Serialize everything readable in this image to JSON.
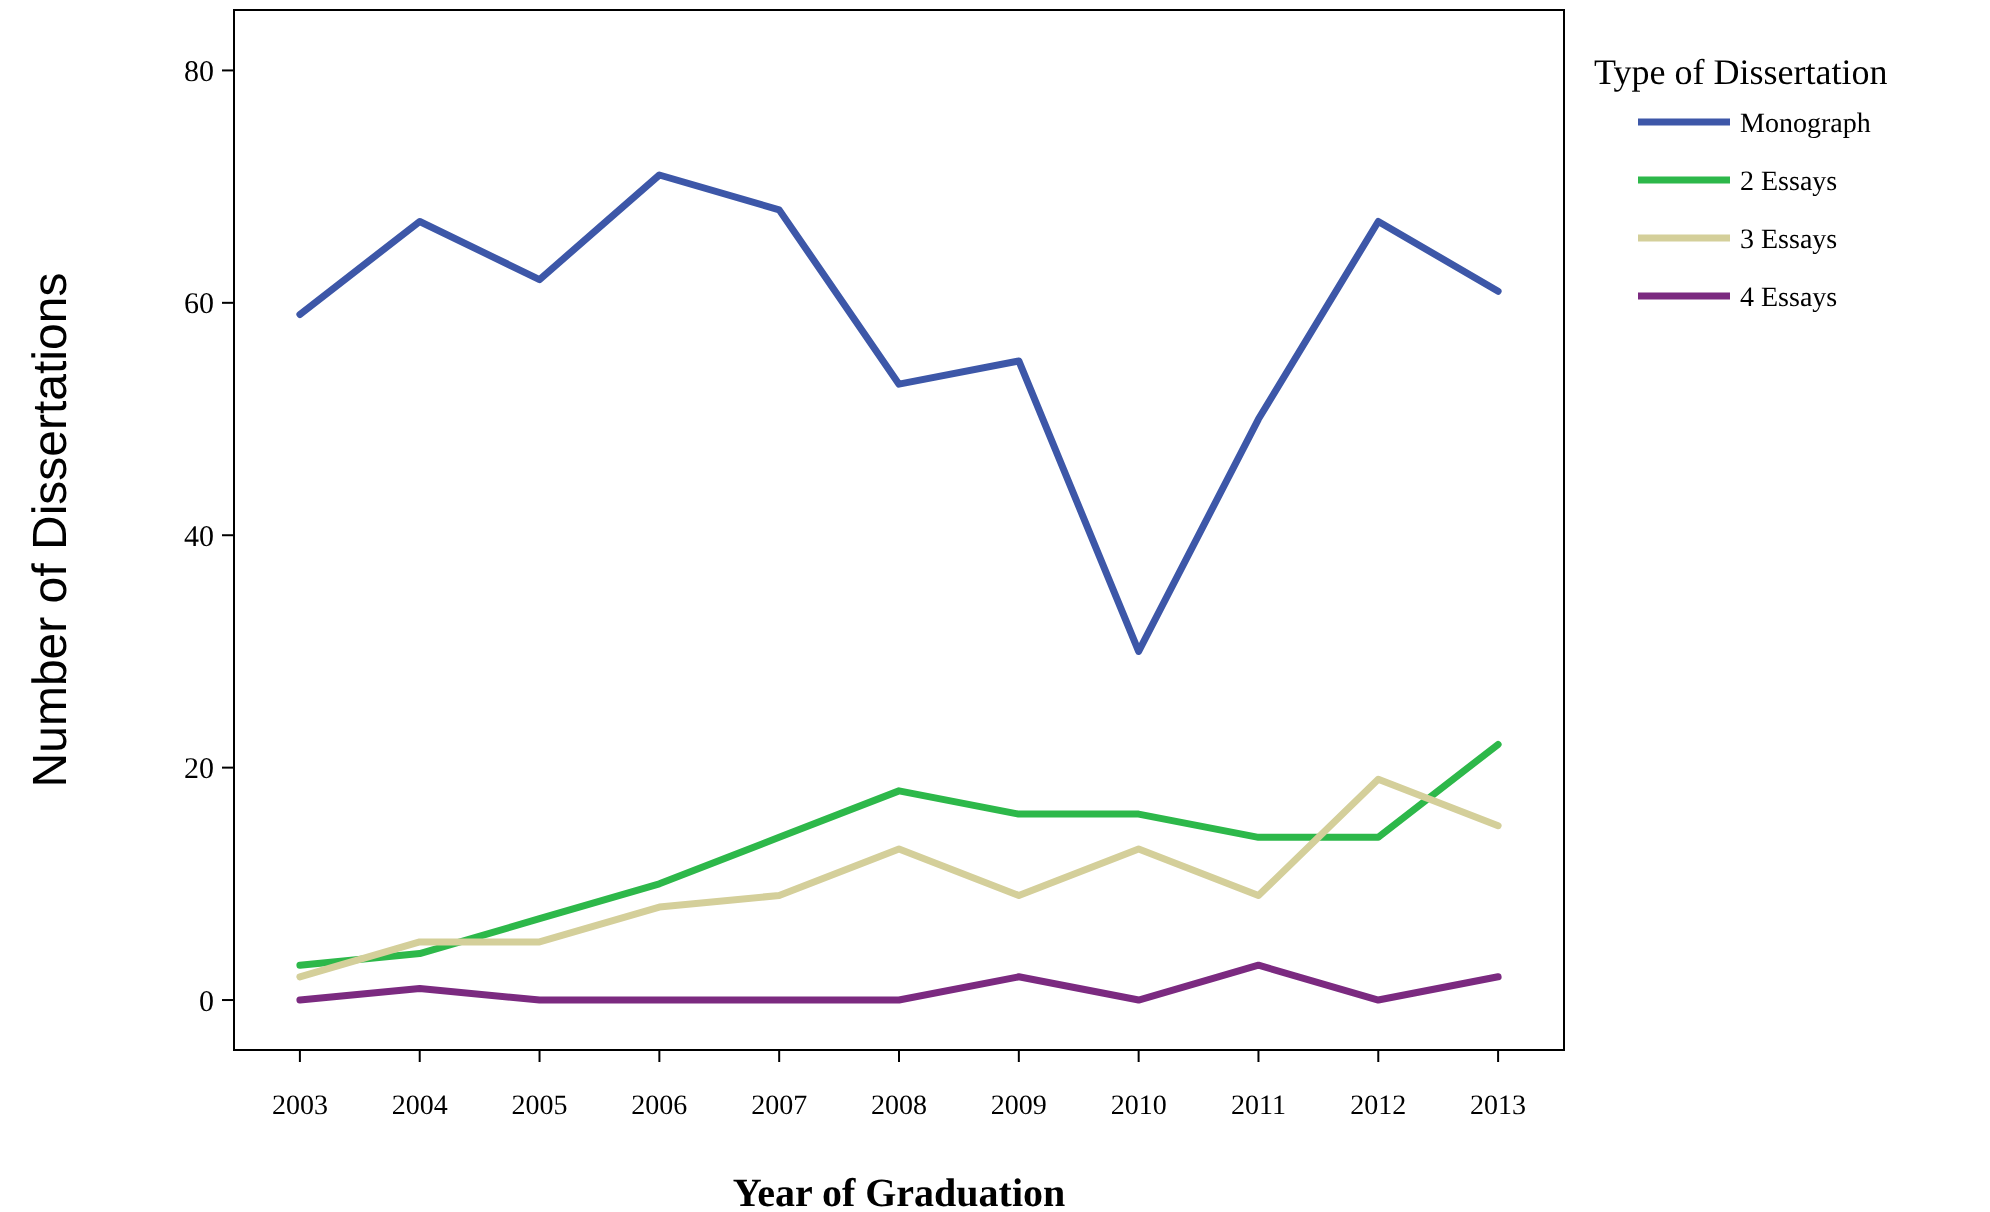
{
  "chart_data": {
    "type": "line",
    "xlabel": "Year of Graduation",
    "ylabel": "Number of Dissertations",
    "legend_title": "Type of Dissertation",
    "legend": "right",
    "grid": false,
    "marker": "none",
    "line_style": "solid",
    "categories": [
      "2003",
      "2004",
      "2005",
      "2006",
      "2007",
      "2008",
      "2009",
      "2010",
      "2011",
      "2012",
      "2013"
    ],
    "ylim": [
      -4.3,
      85.2
    ],
    "yticks": [
      0,
      20,
      40,
      60,
      80
    ],
    "series": [
      {
        "name": "Monograph",
        "color": "#3d57a8",
        "values": [
          59,
          67,
          62,
          71,
          68,
          53,
          55,
          30,
          50,
          67,
          61
        ]
      },
      {
        "name": "2 Essays",
        "color": "#2db84a",
        "values": [
          3,
          4,
          7,
          10,
          14,
          18,
          16,
          16,
          14,
          14,
          22
        ]
      },
      {
        "name": "3 Essays",
        "color": "#d4cf9a",
        "values": [
          2,
          5,
          5,
          8,
          9,
          13,
          9,
          13,
          9,
          19,
          15
        ]
      },
      {
        "name": "4 Essays",
        "color": "#7b2a80",
        "values": [
          0,
          1,
          0,
          0,
          0,
          0,
          2,
          0,
          3,
          0,
          2
        ]
      }
    ]
  }
}
